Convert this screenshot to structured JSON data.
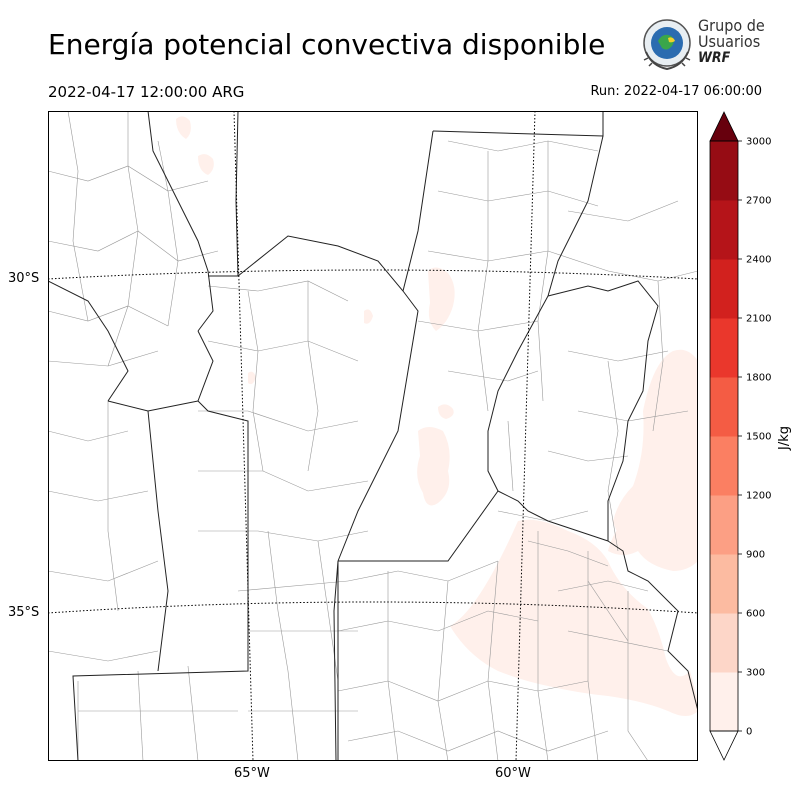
{
  "header": {
    "title": "Energía potencial convectiva disponible",
    "valid_time": "2022-04-17 12:00:00 ARG",
    "run_time": "Run: 2022-04-17 06:00:00"
  },
  "logo": {
    "line1": "Grupo de",
    "line2": "Usuarios",
    "line3": "WRF"
  },
  "map": {
    "lat_labels": [
      "30°S",
      "35°S"
    ],
    "lon_labels": [
      "65°W",
      "60°W"
    ]
  },
  "colorbar": {
    "unit": "J/kg",
    "levels": [
      0,
      300,
      600,
      900,
      1200,
      1500,
      1800,
      2100,
      2400,
      2700,
      3000
    ],
    "colors": [
      "#fff0eb",
      "#fdd6c8",
      "#fcbba1",
      "#fc9f84",
      "#fb7f62",
      "#f45c44",
      "#ea372c",
      "#d2211e",
      "#b51419",
      "#960c14",
      "#780811"
    ],
    "under_color": "#ffffff",
    "over_color": "#67000d"
  }
}
